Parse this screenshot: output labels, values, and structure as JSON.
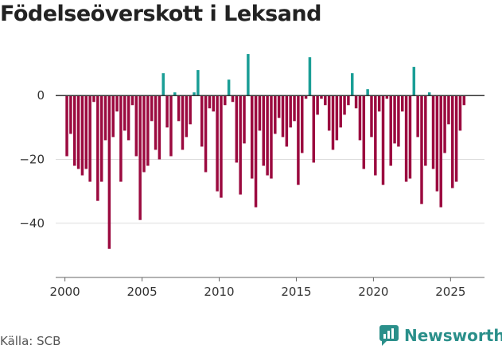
{
  "title": "Födelseöverskott i Leksand",
  "source": "Källa: SCB",
  "brand": "Newsworthy",
  "colors": {
    "positive": "#1a9e96",
    "negative": "#9b0a3f",
    "grid": "#dddddd",
    "zero": "#333333"
  },
  "chart_data": {
    "type": "bar",
    "title": "Födelseöverskott i Leksand",
    "xlabel": "",
    "ylabel": "",
    "frequency": "monthly",
    "start": "2000-01",
    "xlim": [
      1999.4,
      2027.2
    ],
    "ylim": [
      -57,
      15
    ],
    "yticks": [
      0,
      -20,
      -40
    ],
    "ytick_labels": [
      "0",
      "−20",
      "−40"
    ],
    "xticks": [
      2000,
      2005,
      2010,
      2015,
      2020,
      2025
    ],
    "xtick_labels": [
      "2000",
      "2005",
      "2010",
      "2015",
      "2020",
      "2025"
    ],
    "values": [
      -19,
      -12,
      -22,
      -23,
      -25,
      -23,
      -27,
      -2,
      -33,
      -27,
      -14,
      -48,
      -13,
      -5,
      -27,
      -11,
      -14,
      -3,
      -19,
      -39,
      -24,
      -22,
      -8,
      -17,
      -20,
      7,
      -10,
      -19,
      1,
      -8,
      -17,
      -13,
      -9,
      1,
      8,
      -16,
      -24,
      -4,
      -5,
      -30,
      -32,
      -3,
      5,
      -2,
      -21,
      -31,
      -15,
      13,
      -26,
      -35,
      -11,
      -22,
      -25,
      -26,
      -12,
      -7,
      -13,
      -16,
      -10,
      -8,
      -28,
      -18,
      -1,
      12,
      -21,
      -6,
      -1,
      -3,
      -11,
      -17,
      -14,
      -10,
      -6,
      -3,
      7,
      -4,
      -14,
      -23,
      2,
      -13,
      -25,
      -5,
      -28,
      -1,
      -22,
      -15,
      -16,
      -5,
      -27,
      -26,
      9,
      -13,
      -34,
      -22,
      1,
      -23,
      -30,
      -35,
      -18,
      -9,
      -29,
      -27,
      -11,
      -3
    ]
  }
}
